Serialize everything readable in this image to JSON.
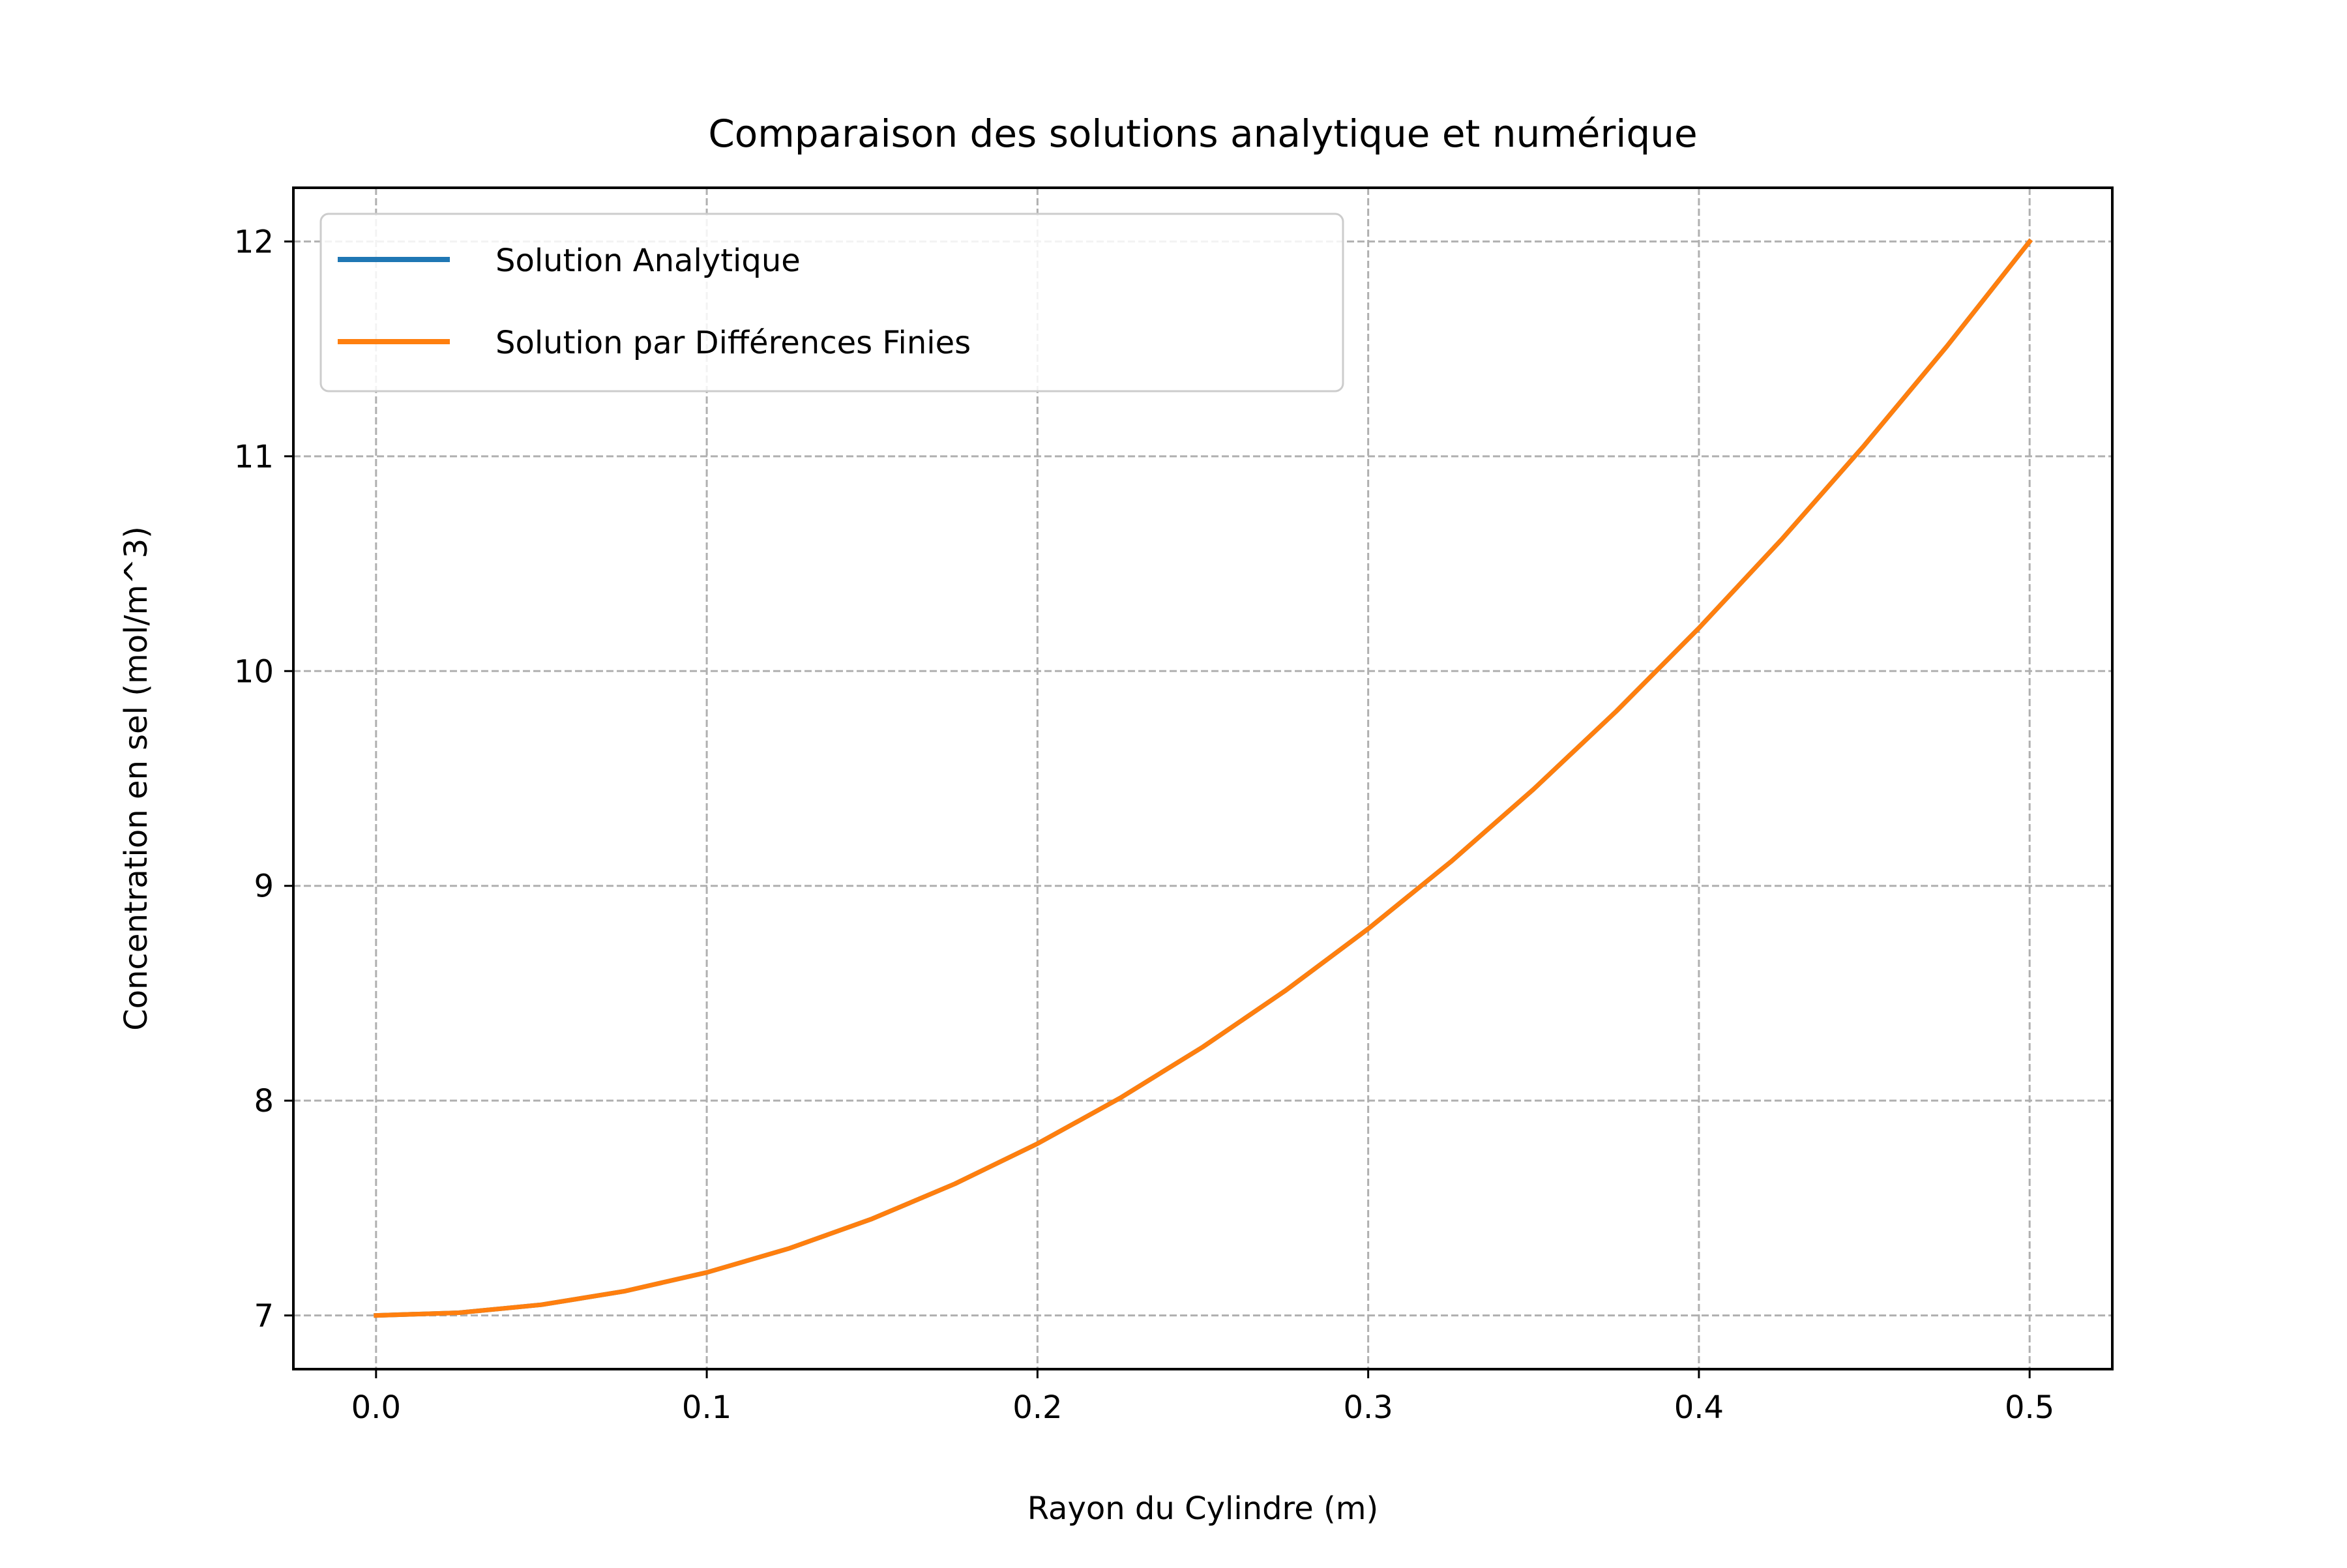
{
  "chart_data": {
    "type": "line",
    "title": "Comparaison des solutions analytique et numérique",
    "xlabel": "Rayon du Cylindre (m)",
    "ylabel": "Concentration en sel (mol/m^3)",
    "xlim": [
      -0.025,
      0.525
    ],
    "ylim": [
      6.75,
      12.25
    ],
    "xticks": [
      0.0,
      0.1,
      0.2,
      0.3,
      0.4,
      0.5
    ],
    "xtick_labels": [
      "0.0",
      "0.1",
      "0.2",
      "0.3",
      "0.4",
      "0.5"
    ],
    "yticks": [
      7,
      8,
      9,
      10,
      11,
      12
    ],
    "ytick_labels": [
      "7",
      "8",
      "9",
      "10",
      "11",
      "12"
    ],
    "grid": true,
    "legend_position": "upper-left",
    "x": [
      0.0,
      0.025,
      0.05,
      0.075,
      0.1,
      0.125,
      0.15,
      0.175,
      0.2,
      0.225,
      0.25,
      0.275,
      0.3,
      0.325,
      0.35,
      0.375,
      0.4,
      0.425,
      0.45,
      0.475,
      0.5
    ],
    "series": [
      {
        "name": "Solution Analytique",
        "color": "#1f77b4",
        "values": [
          7.0,
          7.0125,
          7.05,
          7.1125,
          7.2,
          7.3125,
          7.45,
          7.6125,
          7.8,
          8.0125,
          8.25,
          8.5125,
          8.8,
          9.1125,
          9.45,
          9.8125,
          10.2,
          10.6125,
          11.05,
          11.5125,
          12.0
        ]
      },
      {
        "name": "Solution par Différences Finies",
        "color": "#ff7f0e",
        "values": [
          7.0,
          7.0125,
          7.05,
          7.1125,
          7.2,
          7.3125,
          7.45,
          7.6125,
          7.8,
          8.0125,
          8.25,
          8.5125,
          8.8,
          9.1125,
          9.45,
          9.8125,
          10.2,
          10.6125,
          11.05,
          11.5125,
          12.0
        ]
      }
    ]
  }
}
